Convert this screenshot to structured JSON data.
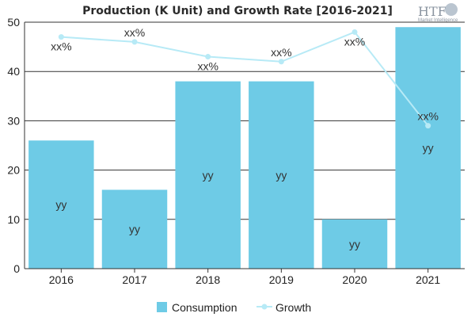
{
  "logo": {
    "text": "HTF",
    "subtext": "Market Intelligence"
  },
  "colors": {
    "bar": "#6ecbe6",
    "line": "#b7eaf6",
    "axis": "#333333",
    "grid": "#333333"
  },
  "chart_data": {
    "type": "bar",
    "title": "Production (K Unit) and Growth Rate [2016-2021]",
    "categories": [
      "2016",
      "2017",
      "2018",
      "2019",
      "2020",
      "2021"
    ],
    "ylim": [
      0,
      50
    ],
    "yticks": [
      0,
      10,
      20,
      30,
      40,
      50
    ],
    "grid": true,
    "legend_position": "bottom",
    "series": [
      {
        "name": "Consumption",
        "type": "bar",
        "values": [
          26,
          16,
          38,
          38,
          10,
          49
        ],
        "labels": [
          "yy",
          "yy",
          "yy",
          "yy",
          "yy",
          "yy"
        ]
      },
      {
        "name": "Growth",
        "type": "line",
        "values": [
          47,
          46,
          43,
          42,
          48,
          29
        ],
        "labels": [
          "xx%",
          "xx%",
          "xx%",
          "xx%",
          "xx%",
          "xx%"
        ]
      }
    ]
  }
}
